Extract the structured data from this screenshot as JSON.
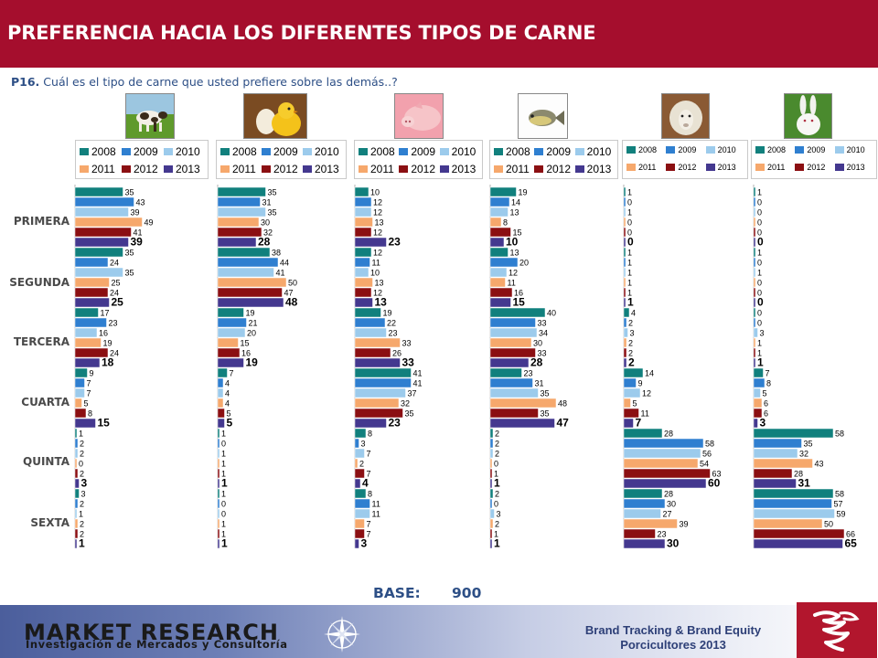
{
  "header": {
    "title": "PREFERENCIA HACIA LOS DIFERENTES TIPOS DE CARNE"
  },
  "question": {
    "code": "P16.",
    "text": "Cuál es el tipo de carne que usted prefiere sobre las demás..?"
  },
  "base": {
    "label": "BASE:",
    "value": "900"
  },
  "footer": {
    "brand": "MARKET RESEARCH",
    "brand_sub": "Investigación de Mercados y Consultoría",
    "tagline_1": "Brand Tracking & Brand Equity",
    "tagline_2": "Porcicultores 2013"
  },
  "colors": {
    "title_bg": "#a50e2d",
    "y2008": "#11807d",
    "y2009": "#2f7fd0",
    "y2010": "#9ccbec",
    "y2011": "#f6a86c",
    "y2012": "#8b0f12",
    "y2013": "#44388f"
  },
  "icons": [
    "cow-picture",
    "chick-picture",
    "pig-picture",
    "fish-picture",
    "sheep-picture",
    "rabbit-picture"
  ],
  "chart_data": {
    "type": "bar",
    "orientation": "horizontal",
    "categories": [
      "PRIMERA",
      "SEGUNDA",
      "TERCERA",
      "CUARTA",
      "QUINTA",
      "SEXTA"
    ],
    "series_years": [
      "2008",
      "2009",
      "2010",
      "2011",
      "2012",
      "2013"
    ],
    "panels": [
      {
        "values": [
          [
            35,
            43,
            39,
            49,
            41,
            39
          ],
          [
            35,
            24,
            35,
            25,
            24,
            25
          ],
          [
            17,
            23,
            16,
            19,
            24,
            18
          ],
          [
            9,
            7,
            7,
            5,
            8,
            15
          ],
          [
            1,
            2,
            2,
            0,
            2,
            3
          ],
          [
            3,
            2,
            1,
            2,
            2,
            1
          ]
        ]
      },
      {
        "values": [
          [
            35,
            31,
            35,
            30,
            32,
            28
          ],
          [
            38,
            44,
            41,
            50,
            47,
            48
          ],
          [
            19,
            21,
            20,
            15,
            16,
            19
          ],
          [
            7,
            4,
            4,
            4,
            5,
            5
          ],
          [
            1,
            0,
            1,
            1,
            1,
            1
          ],
          [
            1,
            0,
            0,
            1,
            1,
            1
          ]
        ]
      },
      {
        "values": [
          [
            10,
            12,
            12,
            13,
            12,
            23
          ],
          [
            12,
            11,
            10,
            13,
            12,
            13
          ],
          [
            19,
            22,
            23,
            33,
            26,
            33
          ],
          [
            41,
            41,
            37,
            32,
            35,
            23
          ],
          [
            8,
            3,
            7,
            2,
            7,
            4
          ],
          [
            8,
            11,
            11,
            7,
            7,
            3
          ]
        ]
      },
      {
        "values": [
          [
            19,
            14,
            13,
            8,
            15,
            10
          ],
          [
            13,
            20,
            12,
            11,
            16,
            15
          ],
          [
            40,
            33,
            34,
            30,
            33,
            28
          ],
          [
            23,
            31,
            35,
            48,
            35,
            47
          ],
          [
            2,
            2,
            2,
            0,
            1,
            1
          ],
          [
            2,
            0,
            3,
            2,
            1,
            1
          ]
        ]
      },
      {
        "values": [
          [
            1,
            0,
            1,
            0,
            0,
            0
          ],
          [
            1,
            1,
            1,
            1,
            1,
            1
          ],
          [
            4,
            2,
            3,
            2,
            2,
            2
          ],
          [
            14,
            9,
            12,
            5,
            11,
            7
          ],
          [
            28,
            58,
            56,
            54,
            63,
            60
          ],
          [
            28,
            30,
            27,
            39,
            23,
            30
          ]
        ]
      },
      {
        "values": [
          [
            1,
            0,
            0,
            0,
            0,
            0
          ],
          [
            1,
            0,
            1,
            0,
            0,
            0
          ],
          [
            0,
            0,
            3,
            1,
            1,
            1
          ],
          [
            7,
            8,
            5,
            6,
            6,
            3
          ],
          [
            58,
            35,
            32,
            43,
            28,
            31
          ],
          [
            58,
            57,
            59,
            50,
            66,
            65
          ]
        ]
      }
    ]
  }
}
